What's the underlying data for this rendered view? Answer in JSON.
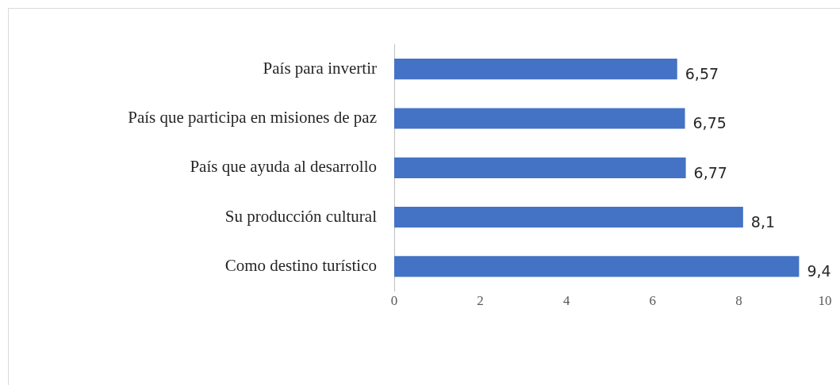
{
  "chart_data": {
    "type": "bar",
    "orientation": "horizontal",
    "categories": [
      "País para invertir",
      "País que participa en misiones de paz",
      "País que ayuda al desarrollo",
      "Su producción cultural",
      "Como destino turístico"
    ],
    "values": [
      6.57,
      6.75,
      6.77,
      8.1,
      9.4
    ],
    "value_labels": [
      "6,57",
      "6,75",
      "6,77",
      "8,1",
      "9,4"
    ],
    "color": "#4472c4",
    "xlim": [
      0,
      10
    ],
    "xticks": [
      0,
      2,
      4,
      6,
      8,
      10
    ],
    "grid": false,
    "legend": false
  }
}
